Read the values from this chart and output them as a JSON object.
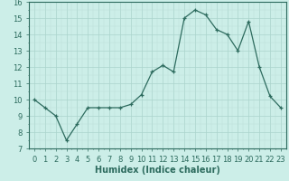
{
  "hours": [
    0,
    1,
    2,
    3,
    4,
    5,
    6,
    7,
    8,
    9,
    10,
    11,
    12,
    13,
    14,
    15,
    16,
    17,
    18,
    19,
    20,
    21,
    22,
    23
  ],
  "humidex": [
    10.0,
    9.5,
    9.0,
    7.5,
    8.5,
    9.5,
    9.5,
    9.5,
    9.5,
    9.7,
    10.3,
    11.7,
    12.1,
    11.7,
    15.0,
    15.5,
    15.2,
    14.3,
    14.0,
    13.0,
    14.8,
    12.0,
    10.2,
    9.5
  ],
  "ylim": [
    7,
    16
  ],
  "yticks": [
    7,
    8,
    9,
    10,
    11,
    12,
    13,
    14,
    15,
    16
  ],
  "xticks": [
    0,
    1,
    2,
    3,
    4,
    5,
    6,
    7,
    8,
    9,
    10,
    11,
    12,
    13,
    14,
    15,
    16,
    17,
    18,
    19,
    20,
    21,
    22,
    23
  ],
  "xlabel": "Humidex (Indice chaleur)",
  "line_color": "#2d6b5e",
  "marker": "+",
  "bg_plot": "#cceee8",
  "bg_fig": "#cceee8",
  "grid_color_major": "#aad4cc",
  "grid_color_minor": "#bbddd6",
  "axis_fontsize": 7,
  "tick_fontsize": 6
}
